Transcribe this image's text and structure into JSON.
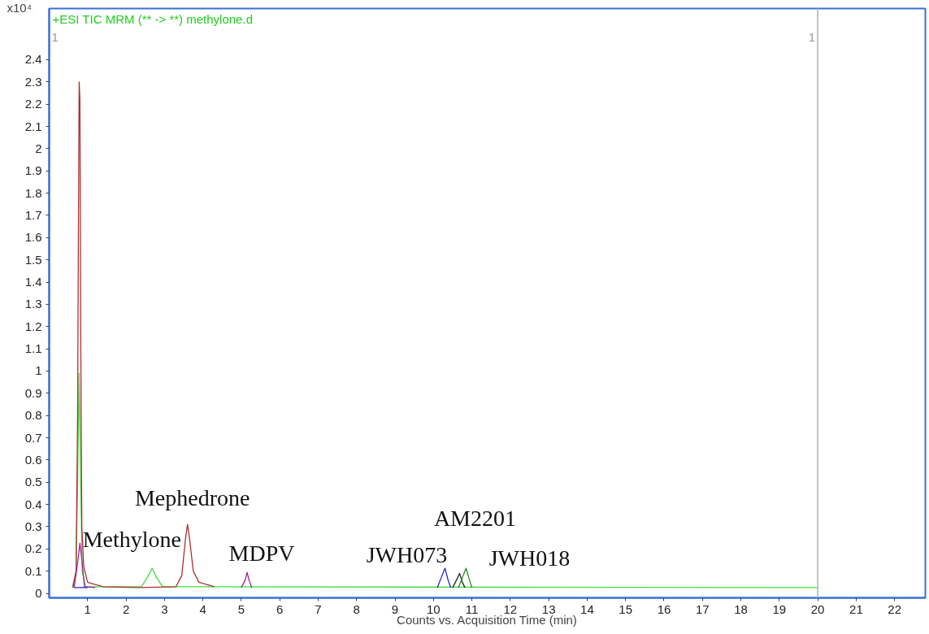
{
  "chart_data": {
    "type": "line",
    "title": "+ESI TIC MRM (** -> **) methylone.d",
    "xlabel": "Counts vs. Acquisition Time (min)",
    "ylabel": "x10⁴",
    "xlim": [
      0,
      22.8
    ],
    "xticks": [
      1,
      2,
      3,
      4,
      5,
      6,
      7,
      8,
      9,
      10,
      11,
      12,
      13,
      14,
      15,
      16,
      17,
      18,
      19,
      20,
      21,
      22
    ],
    "ylim": [
      -0.02,
      2.63
    ],
    "yticks": [
      0,
      0.1,
      0.2,
      0.3,
      0.4,
      0.5,
      0.6,
      0.7,
      0.8,
      0.9,
      1,
      1.1,
      1.2,
      1.3,
      1.4,
      1.5,
      1.6,
      1.7,
      1.8,
      1.9,
      2,
      2.1,
      2.2,
      2.3,
      2.4
    ],
    "grid": false,
    "line_style": "solid",
    "marker": "none",
    "series": [
      {
        "color": "#44dd44",
        "x": [
          0.6,
          0.7,
          0.74,
          0.78,
          0.82,
          0.86,
          0.95,
          2.4,
          2.55,
          2.68,
          2.8,
          2.95,
          20
        ],
        "values": [
          0.026,
          0.1,
          0.5,
          0.99,
          0.5,
          0.1,
          0.03,
          0.03,
          0.07,
          0.113,
          0.07,
          0.03,
          0.026
        ]
      },
      {
        "color": "#b03030",
        "x": [
          0.62,
          0.7,
          0.74,
          0.76,
          0.78,
          0.8,
          0.82,
          0.85,
          0.9,
          1.0,
          1.4,
          2.3,
          3.3,
          3.45,
          3.55,
          3.6,
          3.65,
          3.75,
          3.9,
          4.3
        ],
        "values": [
          0.026,
          0.1,
          0.8,
          1.6,
          2.3,
          2.22,
          1.2,
          0.3,
          0.12,
          0.05,
          0.03,
          0.026,
          0.03,
          0.08,
          0.25,
          0.31,
          0.25,
          0.1,
          0.05,
          0.03
        ]
      },
      {
        "color": "#a020a0",
        "x": [
          0.65,
          0.75,
          0.8,
          0.85,
          0.92,
          1.2
        ],
        "values": [
          0.026,
          0.15,
          0.226,
          0.15,
          0.03,
          0.026
        ]
      },
      {
        "color": "#a020a0",
        "x": [
          5.0,
          5.1,
          5.15,
          5.2,
          5.27
        ],
        "values": [
          0.026,
          0.06,
          0.095,
          0.06,
          0.026
        ]
      },
      {
        "color": "#2020dd",
        "x": [
          0.65,
          1.0
        ],
        "values": [
          0.026,
          0.026
        ]
      },
      {
        "color": "#2020dd",
        "x": [
          10.1,
          10.2,
          10.3,
          10.38,
          10.45
        ],
        "values": [
          0.026,
          0.07,
          0.113,
          0.06,
          0.026
        ]
      },
      {
        "color": "#222222",
        "x": [
          10.5,
          10.6,
          10.68,
          10.75,
          10.82
        ],
        "values": [
          0.026,
          0.06,
          0.09,
          0.05,
          0.026
        ]
      },
      {
        "color": "#228822",
        "x": [
          10.65,
          10.75,
          10.85,
          10.92,
          11.0
        ],
        "values": [
          0.026,
          0.07,
          0.113,
          0.07,
          0.026
        ]
      }
    ],
    "ref_lines": [
      {
        "axis": "x",
        "value": 20,
        "color": "#c0c0c0"
      }
    ],
    "annotations": [
      "1",
      "1",
      {
        "text": "Methylone",
        "x": 0.8,
        "y": 0.226
      },
      {
        "text": "Mephedrone",
        "x": 3.6,
        "y": 0.31
      },
      {
        "text": "MDPV",
        "x": 5.15,
        "y": 0.095
      },
      {
        "text": "JWH073",
        "x": 10.3,
        "y": 0.113
      },
      {
        "text": "AM2201",
        "x": 10.68,
        "y": 0.09
      },
      {
        "text": "JWH018",
        "x": 10.85,
        "y": 0.113
      }
    ]
  }
}
